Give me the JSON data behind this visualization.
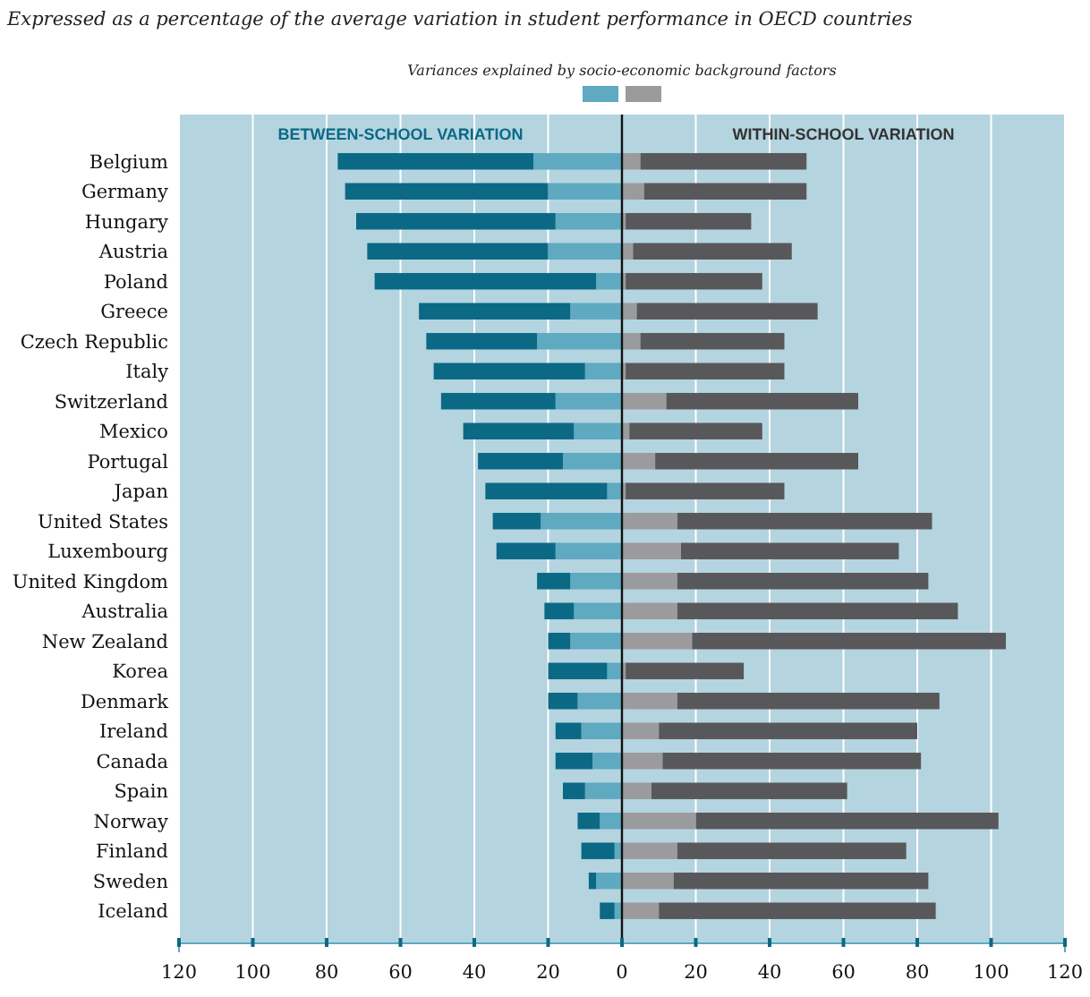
{
  "chart_data": {
    "type": "bar",
    "orientation": "horizontal",
    "stacked": true,
    "title": "Expressed as a percentage of the average variation in student performance in OECD countries",
    "legend_title": "Variances explained by socio-economic background factors",
    "annotations": [
      "BETWEEN-SCHOOL VARIATION",
      "WITHIN-SCHOOL VARIATION"
    ],
    "categories": [
      "Belgium",
      "Germany",
      "Hungary",
      "Austria",
      "Poland",
      "Greece",
      "Czech Republic",
      "Italy",
      "Switzerland",
      "Mexico",
      "Portugal",
      "Japan",
      "United States",
      "Luxembourg",
      "United Kingdom",
      "Australia",
      "New Zealand",
      "Korea",
      "Denmark",
      "Ireland",
      "Canada",
      "Spain",
      "Norway",
      "Finland",
      "Sweden",
      "Iceland"
    ],
    "series": [
      {
        "color": "#5fa9c1",
        "values": [
          -24,
          -20,
          -18,
          -20,
          -7,
          -14,
          -23,
          -10,
          -18,
          -13,
          -16,
          -4,
          -22,
          -18,
          -14,
          -13,
          -14,
          -4,
          -12,
          -11,
          -8,
          -10,
          -6,
          -2,
          -7,
          -2
        ]
      },
      {
        "color": "#0b6985",
        "values": [
          -53,
          -55,
          -54,
          -49,
          -60,
          -41,
          -30,
          -41,
          -31,
          -30,
          -23,
          -33,
          -13,
          -16,
          -9,
          -8,
          -6,
          -16,
          -8,
          -7,
          -10,
          -6,
          -6,
          -9,
          -2,
          -4
        ]
      },
      {
        "color": "#9b9b9d",
        "values": [
          5,
          6,
          1,
          3,
          1,
          4,
          5,
          1,
          12,
          2,
          9,
          1,
          15,
          16,
          15,
          15,
          19,
          1,
          15,
          10,
          11,
          8,
          20,
          15,
          14,
          10
        ]
      },
      {
        "color": "#58585a",
        "values": [
          45,
          44,
          34,
          43,
          37,
          49,
          39,
          43,
          52,
          36,
          55,
          43,
          69,
          59,
          68,
          76,
          85,
          32,
          71,
          70,
          70,
          53,
          82,
          62,
          69,
          75
        ]
      }
    ],
    "xlim": [
      -120,
      120
    ],
    "xticks": [
      {
        "value": -120,
        "label": "120"
      },
      {
        "value": -100,
        "label": "100"
      },
      {
        "value": -80,
        "label": "80"
      },
      {
        "value": -60,
        "label": "60"
      },
      {
        "value": -40,
        "label": "40"
      },
      {
        "value": -20,
        "label": "20"
      },
      0,
      20,
      40,
      60,
      80,
      100,
      120
    ],
    "grid": "x"
  }
}
